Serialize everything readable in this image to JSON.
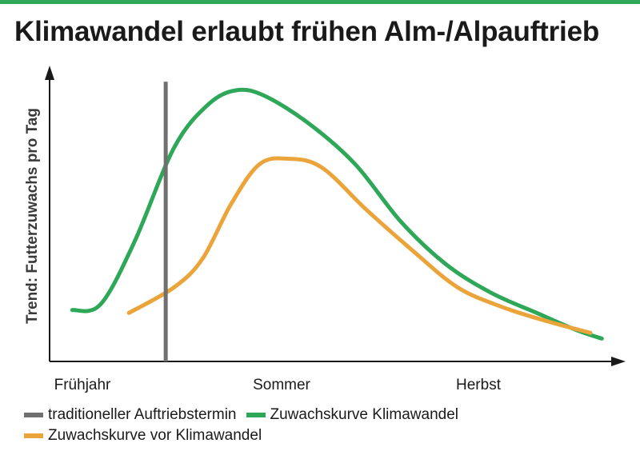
{
  "title": "Klimawandel erlaubt frühen Alm-/Alpauftrieb",
  "colors": {
    "accent_bar": "#2ea858",
    "axis": "#1a1a1a",
    "green": "#2ea858",
    "orange": "#eba43a",
    "gray": "#707070"
  },
  "chart_data": {
    "type": "line",
    "title": "Klimawandel erlaubt frühen Alm-/Alpauftrieb",
    "xlabel": "",
    "ylabel": "Trend: Futterzuwachs pro Tag",
    "x_ticks": [
      "Frühjahr",
      "Sommer",
      "Herbst"
    ],
    "xlim": [
      0,
      10
    ],
    "ylim": [
      0,
      10
    ],
    "grid": false,
    "legend_position": "bottom",
    "series": [
      {
        "name": "Zuwachskurve Klimawandel",
        "color": "#2ea858",
        "points": [
          [
            0.4,
            1.8
          ],
          [
            0.9,
            2.0
          ],
          [
            1.5,
            4.2
          ],
          [
            2.2,
            7.5
          ],
          [
            2.8,
            9.0
          ],
          [
            3.3,
            9.5
          ],
          [
            3.8,
            9.3
          ],
          [
            4.6,
            8.3
          ],
          [
            5.4,
            6.9
          ],
          [
            6.2,
            4.9
          ],
          [
            7.0,
            3.4
          ],
          [
            7.8,
            2.4
          ],
          [
            8.6,
            1.7
          ],
          [
            9.3,
            1.1
          ],
          [
            9.75,
            0.8
          ]
        ]
      },
      {
        "name": "Zuwachskurve vor Klimawandel",
        "color": "#eba43a",
        "points": [
          [
            1.4,
            1.7
          ],
          [
            2.2,
            2.6
          ],
          [
            2.7,
            3.6
          ],
          [
            3.2,
            5.5
          ],
          [
            3.7,
            6.9
          ],
          [
            4.2,
            7.1
          ],
          [
            4.8,
            6.8
          ],
          [
            5.6,
            5.3
          ],
          [
            6.4,
            3.9
          ],
          [
            7.2,
            2.6
          ],
          [
            8.0,
            1.9
          ],
          [
            8.8,
            1.4
          ],
          [
            9.55,
            1.0
          ]
        ]
      },
      {
        "name": "traditioneller Auftriebstermin",
        "color": "#707070",
        "points": [
          [
            2.05,
            0
          ],
          [
            2.05,
            9.8
          ]
        ]
      }
    ]
  },
  "legend": [
    {
      "label": "traditioneller Auftriebstermin",
      "color": "#707070"
    },
    {
      "label": "Zuwachskurve Klimawandel",
      "color": "#2ea858"
    },
    {
      "label": "Zuwachskurve vor Klimawandel",
      "color": "#eba43a"
    }
  ]
}
